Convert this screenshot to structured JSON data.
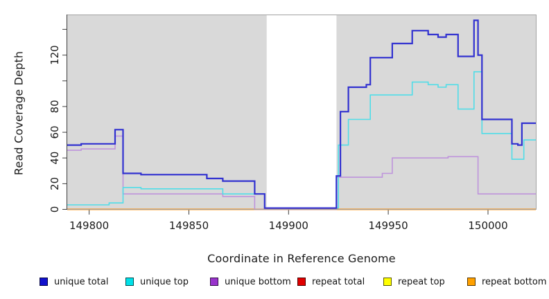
{
  "figure": {
    "plot_bg": "#D9D9D9",
    "gap_bg": "#FFFFFF",
    "border_color": "#A3A3A3",
    "axis_color": "#3c3c3c",
    "tick_label_color": "#1a1a1a"
  },
  "chart_data": {
    "type": "line",
    "subtype": "step",
    "title": "",
    "xlabel": "Coordinate in Reference Genome",
    "ylabel": "Read Coverage Depth",
    "xlim": [
      149789,
      150024
    ],
    "ylim": [
      0,
      151
    ],
    "grid": false,
    "legend_position": "bottom",
    "x_ticks": [
      149800,
      149850,
      149900,
      149950,
      150000
    ],
    "y_ticks": [
      {
        "v": 0,
        "label": "0"
      },
      {
        "v": 20,
        "label": "20"
      },
      {
        "v": 40,
        "label": "40"
      },
      {
        "v": 60,
        "label": "60"
      },
      {
        "v": 80,
        "label": "80"
      },
      {
        "v": 100,
        "label": ""
      },
      {
        "v": 120,
        "label": "120"
      },
      {
        "v": 140,
        "label": ""
      }
    ],
    "gap_region": {
      "from": 149889,
      "to": 149924
    },
    "series": [
      {
        "name": "unique total",
        "color": "#3030D0",
        "width": 2.2,
        "points": [
          [
            149789,
            50
          ],
          [
            149796,
            51
          ],
          [
            149813,
            62
          ],
          [
            149817,
            28
          ],
          [
            149826,
            27
          ],
          [
            149859,
            24
          ],
          [
            149867,
            22
          ],
          [
            149883,
            12
          ],
          [
            149888,
            1
          ],
          [
            149924,
            26
          ],
          [
            149926,
            76
          ],
          [
            149930,
            95
          ],
          [
            149939,
            97
          ],
          [
            149941,
            118
          ],
          [
            149952,
            129
          ],
          [
            149962,
            139
          ],
          [
            149970,
            136
          ],
          [
            149975,
            134
          ],
          [
            149979,
            136
          ],
          [
            149985,
            119
          ],
          [
            149993,
            147
          ],
          [
            149995,
            120
          ],
          [
            149997,
            70
          ],
          [
            150012,
            51
          ],
          [
            150015,
            50
          ],
          [
            150017,
            67
          ]
        ]
      },
      {
        "name": "unique top",
        "color": "#4FDDE8",
        "width": 1.6,
        "points": [
          [
            149789,
            3.5
          ],
          [
            149810,
            5
          ],
          [
            149817,
            17
          ],
          [
            149826,
            16
          ],
          [
            149867,
            12
          ],
          [
            149888,
            1
          ],
          [
            149925,
            50
          ],
          [
            149930,
            70
          ],
          [
            149941,
            89
          ],
          [
            149962,
            99
          ],
          [
            149970,
            97
          ],
          [
            149975,
            95
          ],
          [
            149979,
            97
          ],
          [
            149985,
            78
          ],
          [
            149993,
            107
          ],
          [
            149997,
            59
          ],
          [
            150012,
            39
          ],
          [
            150018,
            54
          ]
        ]
      },
      {
        "name": "unique bottom",
        "color": "#BE93DC",
        "width": 1.6,
        "points": [
          [
            149789,
            46
          ],
          [
            149796,
            47
          ],
          [
            149813,
            57
          ],
          [
            149817,
            12
          ],
          [
            149867,
            10
          ],
          [
            149883,
            0
          ],
          [
            149924,
            25
          ],
          [
            149947,
            28
          ],
          [
            149952,
            40
          ],
          [
            149980,
            41
          ],
          [
            149995,
            12
          ]
        ]
      },
      {
        "name": "repeat total",
        "color": "#CC0000",
        "width": 1.5,
        "points": [
          [
            149789,
            0
          ]
        ]
      },
      {
        "name": "repeat top",
        "color": "#FFFF00",
        "width": 1.5,
        "points": [
          [
            149789,
            0
          ]
        ]
      },
      {
        "name": "repeat bottom",
        "color": "#FF8C00",
        "width": 2.0,
        "points": [
          [
            149789,
            0
          ]
        ]
      }
    ],
    "legend": [
      {
        "label": "unique total",
        "color": "#1111CC"
      },
      {
        "label": "unique top",
        "color": "#00E0E8"
      },
      {
        "label": "unique bottom",
        "color": "#9933CC"
      },
      {
        "label": "repeat total",
        "color": "#E00000"
      },
      {
        "label": "repeat top",
        "color": "#FFFF00"
      },
      {
        "label": "repeat bottom",
        "color": "#FFA000"
      }
    ]
  }
}
